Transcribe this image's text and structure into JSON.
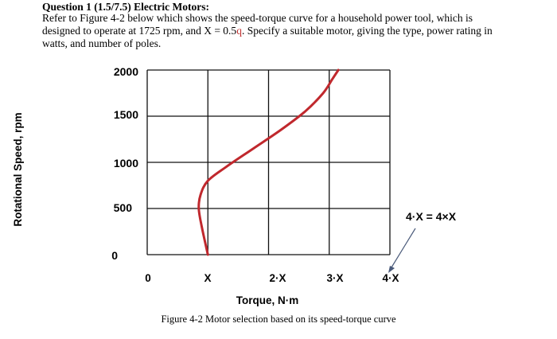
{
  "question": {
    "title": "Question 1 (1.5/7.5) Electric Motors:",
    "line1": "Refer to Figure 4-2 below which shows the speed-torque curve for a household power tool, which is",
    "line2_pre": "designed to operate at 1725 rpm, and X = 0.5",
    "line2_hl": "q",
    "line2_post": ". Specify a suitable motor, giving the type, power rating in",
    "line3": "watts, and number of poles."
  },
  "chart_data": {
    "type": "line",
    "title": "",
    "xlabel": "Torque, N·m",
    "ylabel": "Rotational Speed, rpm",
    "x_ticks": [
      "0",
      "X",
      "2·X",
      "3·X",
      "4·X"
    ],
    "y_ticks": [
      "2000",
      "1500",
      "1000",
      "500",
      "0"
    ],
    "xlim": [
      0,
      4
    ],
    "ylim": [
      0,
      2000
    ],
    "grid": true,
    "series": [
      {
        "color": "#c0282d",
        "points": [
          [
            1.0,
            0
          ],
          [
            0.9,
            300
          ],
          [
            0.85,
            500
          ],
          [
            0.88,
            650
          ],
          [
            1.0,
            800
          ],
          [
            1.3,
            950
          ],
          [
            1.75,
            1150
          ],
          [
            2.2,
            1350
          ],
          [
            2.6,
            1550
          ],
          [
            2.9,
            1750
          ],
          [
            3.05,
            1900
          ],
          [
            3.15,
            2000
          ]
        ]
      }
    ],
    "annotation": "4·X = 4×X",
    "caption": "Figure 4-2 Motor selection based on its speed-torque curve"
  }
}
